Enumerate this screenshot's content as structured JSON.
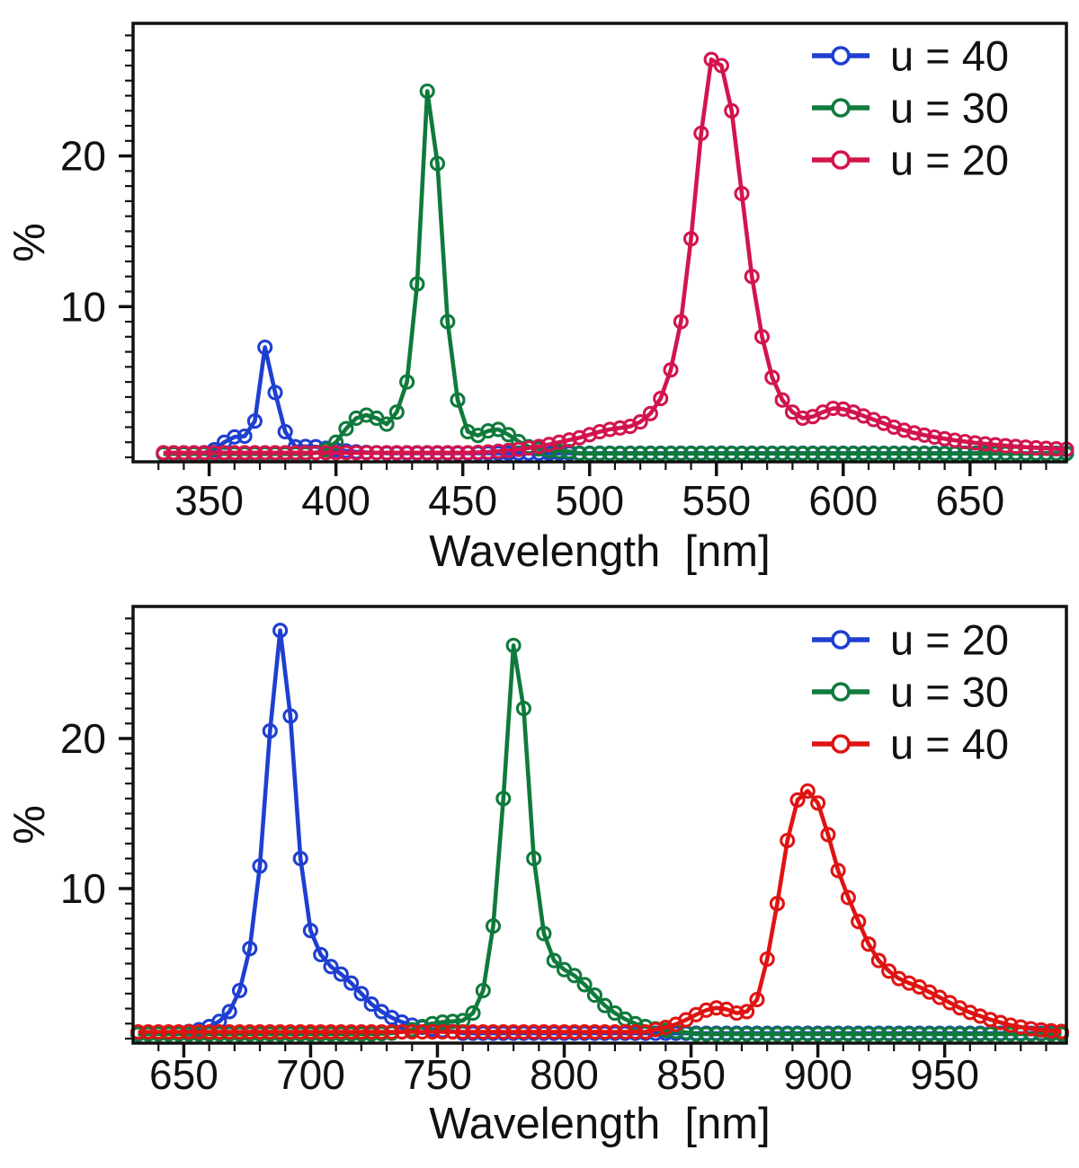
{
  "figure": {
    "background": "#ffffff",
    "text_color": "#111111",
    "axis_color": "#111111"
  },
  "chart_data": [
    {
      "type": "line",
      "title": "",
      "xlabel": "Wavelength  [nm]",
      "ylabel": "%",
      "xlim": [
        320,
        688
      ],
      "ylim": [
        -0.3,
        28.8
      ],
      "xticks": [
        350,
        400,
        450,
        500,
        550,
        600,
        650
      ],
      "yticks": [
        10,
        20
      ],
      "minor_x_step": 10,
      "minor_y_step": 1,
      "grid": false,
      "legend_position": "top-right",
      "marker": "open-circle",
      "series": [
        {
          "name": "u = 40",
          "color": "#1e3fd0",
          "x_start": 332,
          "x_step": 4,
          "y": [
            0.25,
            0.25,
            0.26,
            0.27,
            0.3,
            0.5,
            1.0,
            1.35,
            1.4,
            2.4,
            7.3,
            4.3,
            1.7,
            0.7,
            0.72,
            0.7,
            0.6,
            0.5,
            0.42,
            0.36,
            0.32,
            0.3,
            0.27,
            0.27,
            0.27,
            0.27,
            0.27,
            0.27,
            0.27,
            0.27,
            0.27,
            0.27,
            0.27,
            0.27,
            0.27,
            0.27,
            0.27,
            0.27,
            0.27,
            0.27,
            0.27,
            0.27,
            0.27,
            0.27,
            0.27,
            0.27,
            0.27,
            0.27,
            0.27,
            0.27,
            0.27,
            0.27,
            0.27,
            0.27,
            0.27,
            0.27,
            0.27,
            0.27,
            0.27,
            0.27,
            0.27,
            0.27,
            0.27,
            0.27,
            0.27,
            0.27,
            0.27,
            0.27,
            0.27,
            0.27,
            0.27,
            0.27,
            0.27,
            0.27,
            0.27,
            0.27,
            0.27,
            0.27,
            0.27,
            0.27,
            0.27,
            0.27,
            0.27,
            0.27,
            0.27,
            0.27,
            0.27,
            0.27,
            0.27,
            0.27
          ]
        },
        {
          "name": "u = 30",
          "color": "#0f7a3b",
          "x_start": 332,
          "x_step": 4,
          "y": [
            0.22,
            0.22,
            0.22,
            0.22,
            0.22,
            0.22,
            0.22,
            0.22,
            0.22,
            0.22,
            0.22,
            0.22,
            0.22,
            0.22,
            0.22,
            0.3,
            0.5,
            1.0,
            1.9,
            2.6,
            2.8,
            2.6,
            2.2,
            3.0,
            5.0,
            11.5,
            24.3,
            19.5,
            9.0,
            3.8,
            1.7,
            1.45,
            1.75,
            1.85,
            1.5,
            1.05,
            0.7,
            0.55,
            0.45,
            0.4,
            0.38,
            0.25,
            0.25,
            0.25,
            0.25,
            0.25,
            0.25,
            0.25,
            0.25,
            0.25,
            0.25,
            0.25,
            0.25,
            0.25,
            0.25,
            0.25,
            0.25,
            0.25,
            0.25,
            0.25,
            0.25,
            0.25,
            0.25,
            0.25,
            0.25,
            0.25,
            0.25,
            0.25,
            0.25,
            0.25,
            0.25,
            0.25,
            0.25,
            0.25,
            0.25,
            0.25,
            0.25,
            0.25,
            0.25,
            0.25,
            0.25,
            0.25,
            0.25,
            0.25,
            0.25,
            0.25,
            0.25,
            0.25,
            0.25,
            0.25
          ]
        },
        {
          "name": "u = 20",
          "color": "#d2154d",
          "x_start": 332,
          "x_step": 4,
          "y": [
            0.3,
            0.3,
            0.3,
            0.3,
            0.3,
            0.3,
            0.3,
            0.3,
            0.3,
            0.3,
            0.3,
            0.3,
            0.3,
            0.3,
            0.3,
            0.3,
            0.3,
            0.3,
            0.3,
            0.3,
            0.3,
            0.3,
            0.3,
            0.3,
            0.3,
            0.3,
            0.3,
            0.3,
            0.3,
            0.3,
            0.3,
            0.32,
            0.35,
            0.4,
            0.45,
            0.52,
            0.62,
            0.72,
            0.85,
            1.0,
            1.15,
            1.3,
            1.5,
            1.7,
            1.85,
            1.95,
            2.05,
            2.35,
            2.9,
            3.9,
            5.8,
            9.0,
            14.5,
            21.5,
            26.4,
            26.0,
            23.0,
            17.5,
            12.0,
            8.0,
            5.3,
            3.8,
            3.0,
            2.6,
            2.7,
            3.0,
            3.25,
            3.2,
            3.0,
            2.75,
            2.5,
            2.25,
            2.0,
            1.8,
            1.62,
            1.47,
            1.34,
            1.23,
            1.13,
            1.04,
            0.96,
            0.89,
            0.83,
            0.77,
            0.72,
            0.67,
            0.63,
            0.59,
            0.56,
            0.53
          ]
        }
      ]
    },
    {
      "type": "line",
      "title": "",
      "xlabel": "Wavelength  [nm]",
      "ylabel": "%",
      "xlim": [
        630,
        998
      ],
      "ylim": [
        -0.3,
        28.8
      ],
      "xticks": [
        650,
        700,
        750,
        800,
        850,
        900,
        950
      ],
      "yticks": [
        10,
        20
      ],
      "minor_x_step": 10,
      "minor_y_step": 1,
      "grid": false,
      "legend_position": "top-right",
      "marker": "open-circle",
      "series": [
        {
          "name": "u = 20",
          "color": "#1e3fd0",
          "x_start": 632,
          "x_step": 4,
          "y": [
            0.3,
            0.3,
            0.32,
            0.35,
            0.4,
            0.48,
            0.6,
            0.8,
            1.15,
            1.8,
            3.2,
            6.0,
            11.5,
            20.5,
            27.2,
            21.5,
            12.0,
            7.2,
            5.6,
            4.8,
            4.3,
            3.7,
            3.0,
            2.3,
            1.8,
            1.4,
            1.1,
            0.9,
            0.75,
            0.62,
            0.53,
            0.47,
            0.35,
            0.35,
            0.35,
            0.35,
            0.35,
            0.35,
            0.35,
            0.35,
            0.35,
            0.35,
            0.35,
            0.35,
            0.35,
            0.35,
            0.35,
            0.35,
            0.35,
            0.35,
            0.35,
            0.35,
            0.35,
            0.35,
            0.35,
            0.35,
            0.35,
            0.35,
            0.35,
            0.35,
            0.35,
            0.35,
            0.35,
            0.35,
            0.35,
            0.35,
            0.35,
            0.35,
            0.35,
            0.35,
            0.35,
            0.35,
            0.35,
            0.35,
            0.35,
            0.35,
            0.35,
            0.35,
            0.35,
            0.35,
            0.35,
            0.35,
            0.35,
            0.35,
            0.35,
            0.35,
            0.35,
            0.35,
            0.35,
            0.35,
            0.35,
            0.35
          ]
        },
        {
          "name": "u = 30",
          "color": "#0f7a3b",
          "x_start": 632,
          "x_step": 4,
          "y": [
            0.3,
            0.3,
            0.3,
            0.3,
            0.3,
            0.3,
            0.3,
            0.3,
            0.3,
            0.3,
            0.3,
            0.3,
            0.3,
            0.3,
            0.3,
            0.3,
            0.3,
            0.3,
            0.3,
            0.3,
            0.3,
            0.3,
            0.3,
            0.3,
            0.32,
            0.36,
            0.45,
            0.6,
            0.8,
            1.0,
            1.1,
            1.15,
            1.2,
            1.7,
            3.2,
            7.5,
            16.0,
            26.2,
            22.0,
            12.0,
            7.0,
            5.2,
            4.6,
            4.2,
            3.6,
            2.9,
            2.2,
            1.7,
            1.3,
            1.0,
            0.8,
            0.65,
            0.55,
            0.47,
            0.42,
            0.3,
            0.3,
            0.3,
            0.3,
            0.3,
            0.3,
            0.3,
            0.3,
            0.3,
            0.3,
            0.3,
            0.3,
            0.3,
            0.3,
            0.3,
            0.3,
            0.3,
            0.3,
            0.3,
            0.3,
            0.3,
            0.3,
            0.3,
            0.3,
            0.3,
            0.3,
            0.3,
            0.3,
            0.3,
            0.3,
            0.3,
            0.3,
            0.3,
            0.3,
            0.3,
            0.3,
            0.3
          ]
        },
        {
          "name": "u = 40",
          "color": "#df1412",
          "x_start": 632,
          "x_step": 4,
          "y": [
            0.45,
            0.45,
            0.45,
            0.45,
            0.45,
            0.45,
            0.45,
            0.45,
            0.45,
            0.45,
            0.45,
            0.45,
            0.45,
            0.45,
            0.45,
            0.45,
            0.45,
            0.45,
            0.45,
            0.45,
            0.45,
            0.45,
            0.45,
            0.45,
            0.45,
            0.45,
            0.45,
            0.45,
            0.45,
            0.45,
            0.45,
            0.45,
            0.45,
            0.45,
            0.45,
            0.45,
            0.45,
            0.45,
            0.45,
            0.45,
            0.45,
            0.45,
            0.45,
            0.45,
            0.45,
            0.45,
            0.45,
            0.45,
            0.45,
            0.45,
            0.45,
            0.6,
            0.75,
            0.95,
            1.25,
            1.6,
            1.9,
            2.05,
            1.95,
            1.7,
            1.8,
            2.6,
            5.3,
            9.0,
            13.2,
            15.9,
            16.5,
            15.7,
            13.6,
            11.2,
            9.4,
            7.8,
            6.3,
            5.2,
            4.5,
            4.0,
            3.7,
            3.45,
            3.1,
            2.75,
            2.4,
            2.05,
            1.75,
            1.5,
            1.27,
            1.07,
            0.9,
            0.77,
            0.66,
            0.58,
            0.52,
            0.47
          ]
        }
      ]
    }
  ]
}
